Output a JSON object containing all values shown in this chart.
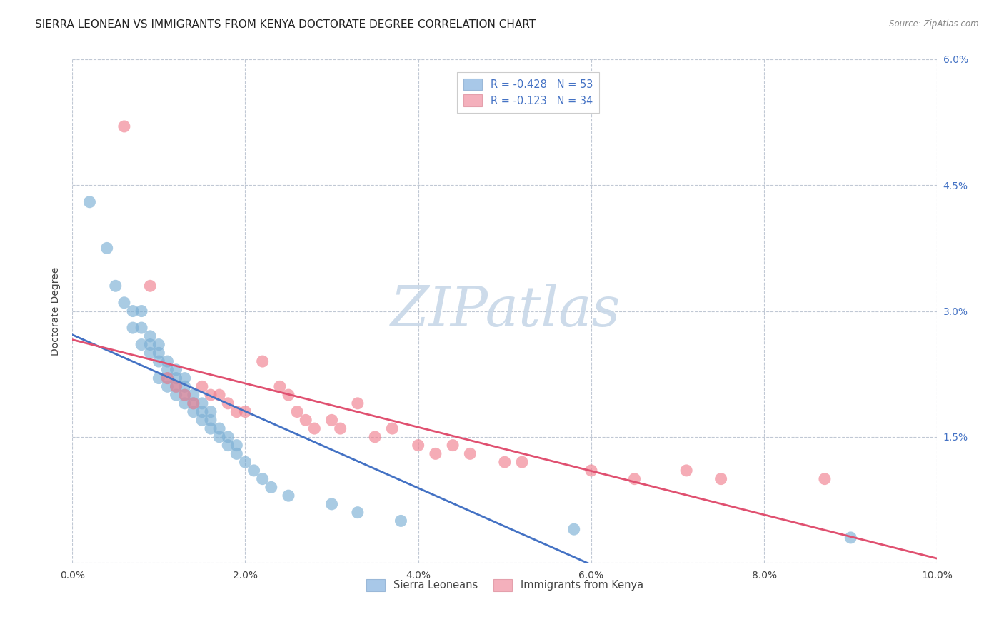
{
  "title": "SIERRA LEONEAN VS IMMIGRANTS FROM KENYA DOCTORATE DEGREE CORRELATION CHART",
  "source": "Source: ZipAtlas.com",
  "ylabel": "Doctorate Degree",
  "xlim": [
    0.0,
    0.1
  ],
  "ylim": [
    0.0,
    0.06
  ],
  "xticks": [
    0.0,
    0.02,
    0.04,
    0.06,
    0.08,
    0.1
  ],
  "yticks": [
    0.0,
    0.015,
    0.03,
    0.045,
    0.06
  ],
  "ytick_labels_right": [
    "",
    "1.5%",
    "3.0%",
    "4.5%",
    "6.0%"
  ],
  "blue_color": "#7bafd4",
  "pink_color": "#f08090",
  "blue_line_color": "#4472c4",
  "pink_line_color": "#e05070",
  "watermark": "ZIPatlas",
  "watermark_zip_color": "#c8d8e8",
  "watermark_atlas_color": "#b8c8e0",
  "title_fontsize": 11,
  "axis_label_fontsize": 10,
  "tick_fontsize": 10,
  "blue_R": -0.428,
  "blue_N": 53,
  "pink_R": -0.123,
  "pink_N": 34,
  "sierra_x": [
    0.002,
    0.004,
    0.005,
    0.006,
    0.007,
    0.007,
    0.008,
    0.008,
    0.008,
    0.009,
    0.009,
    0.009,
    0.01,
    0.01,
    0.01,
    0.01,
    0.011,
    0.011,
    0.011,
    0.011,
    0.012,
    0.012,
    0.012,
    0.012,
    0.013,
    0.013,
    0.013,
    0.013,
    0.014,
    0.014,
    0.014,
    0.015,
    0.015,
    0.015,
    0.016,
    0.016,
    0.016,
    0.017,
    0.017,
    0.018,
    0.018,
    0.019,
    0.019,
    0.02,
    0.021,
    0.022,
    0.023,
    0.025,
    0.03,
    0.033,
    0.038,
    0.058,
    0.09
  ],
  "sierra_y": [
    0.043,
    0.0375,
    0.033,
    0.031,
    0.028,
    0.03,
    0.026,
    0.028,
    0.03,
    0.025,
    0.026,
    0.027,
    0.022,
    0.024,
    0.025,
    0.026,
    0.021,
    0.022,
    0.023,
    0.024,
    0.02,
    0.021,
    0.022,
    0.023,
    0.019,
    0.02,
    0.021,
    0.022,
    0.018,
    0.019,
    0.02,
    0.017,
    0.018,
    0.019,
    0.016,
    0.017,
    0.018,
    0.015,
    0.016,
    0.014,
    0.015,
    0.013,
    0.014,
    0.012,
    0.011,
    0.01,
    0.009,
    0.008,
    0.007,
    0.006,
    0.005,
    0.004,
    0.003
  ],
  "kenya_x": [
    0.006,
    0.009,
    0.011,
    0.012,
    0.013,
    0.014,
    0.015,
    0.016,
    0.017,
    0.018,
    0.019,
    0.02,
    0.022,
    0.024,
    0.025,
    0.026,
    0.027,
    0.028,
    0.03,
    0.031,
    0.033,
    0.035,
    0.037,
    0.04,
    0.042,
    0.044,
    0.046,
    0.05,
    0.052,
    0.06,
    0.065,
    0.071,
    0.075,
    0.087
  ],
  "kenya_y": [
    0.052,
    0.033,
    0.022,
    0.021,
    0.02,
    0.019,
    0.021,
    0.02,
    0.02,
    0.019,
    0.018,
    0.018,
    0.024,
    0.021,
    0.02,
    0.018,
    0.017,
    0.016,
    0.017,
    0.016,
    0.019,
    0.015,
    0.016,
    0.014,
    0.013,
    0.014,
    0.013,
    0.012,
    0.012,
    0.011,
    0.01,
    0.011,
    0.01,
    0.01
  ]
}
